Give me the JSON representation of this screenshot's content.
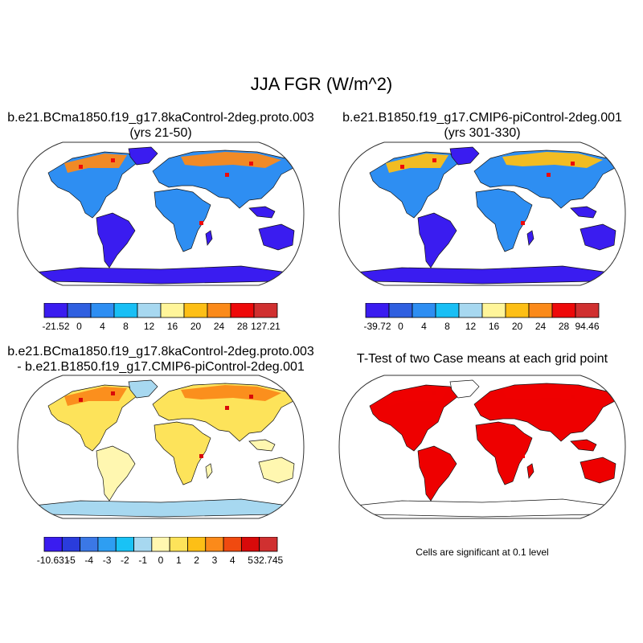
{
  "title": "JJA FGR (W/m^2)",
  "panels": [
    {
      "id": "case1",
      "title_lines": [
        "b.e21.BCma1850.f19_g17.8kaControl-2deg.proto.003",
        "(yrs 21-50)"
      ],
      "colorbar": {
        "colors": [
          "#3a1cf0",
          "#2f5fe0",
          "#2e8ef2",
          "#19bff5",
          "#a7d8f0",
          "#fff59a",
          "#fdbf16",
          "#fb8a1a",
          "#ee0a0a",
          "#d03030"
        ],
        "labels": [
          "-21.52",
          "0",
          "4",
          "8",
          "12",
          "16",
          "20",
          "24",
          "28",
          "127.21"
        ]
      }
    },
    {
      "id": "case2",
      "title_lines": [
        "b.e21.B1850.f19_g17.CMIP6-piControl-2deg.001",
        "(yrs 301-330)"
      ],
      "colorbar": {
        "colors": [
          "#3a1cf0",
          "#2f5fe0",
          "#2e8ef2",
          "#19bff5",
          "#a7d8f0",
          "#fff59a",
          "#fdbf16",
          "#fb8a1a",
          "#ee0a0a",
          "#d03030"
        ],
        "labels": [
          "-39.72",
          "0",
          "4",
          "8",
          "12",
          "16",
          "20",
          "24",
          "28",
          "94.46"
        ]
      }
    },
    {
      "id": "difference",
      "title_lines": [
        "b.e21.BCma1850.f19_g17.8kaControl-2deg.proto.003",
        "- b.e21.B1850.f19_g17.CMIP6-piControl-2deg.001"
      ],
      "colorbar": {
        "colors": [
          "#3a1cf0",
          "#2a3cdc",
          "#3b78e6",
          "#2e9ef2",
          "#19c2f5",
          "#a7d8f0",
          "#fff7b0",
          "#fde35a",
          "#fdbf16",
          "#fb8a1a",
          "#f04a10",
          "#d80a0a",
          "#d03030"
        ],
        "labels": [
          "-10.631",
          "-5",
          "-4",
          "-3",
          "-2",
          "-1",
          "0",
          "1",
          "2",
          "3",
          "4",
          "5",
          "32.745"
        ]
      }
    },
    {
      "id": "ttest",
      "title_lines": [
        "T-Test of two Case means at each grid point"
      ],
      "note": "Cells are significant at 0.1 level"
    }
  ],
  "map_fill": {
    "case1": {
      "base": "#2e8ef2",
      "south": "#3a1cf0",
      "north": "#fb8a1a",
      "hot": "#ee0a0a",
      "polar": "#3a1cf0"
    },
    "case2": {
      "base": "#2e8ef2",
      "south": "#3a1cf0",
      "north": "#fdbf16",
      "hot": "#ee0a0a",
      "polar": "#3a1cf0"
    },
    "difference": {
      "base": "#fde35a",
      "south": "#fff7b0",
      "north": "#fb8a1a",
      "hot": "#d80a0a",
      "polar": "#a7d8f0"
    },
    "ttest": {
      "base": "#ee0000",
      "south": "#ee0000",
      "north": "#ee0000",
      "hot": "#ee0000",
      "polar": "#ffffff"
    }
  }
}
